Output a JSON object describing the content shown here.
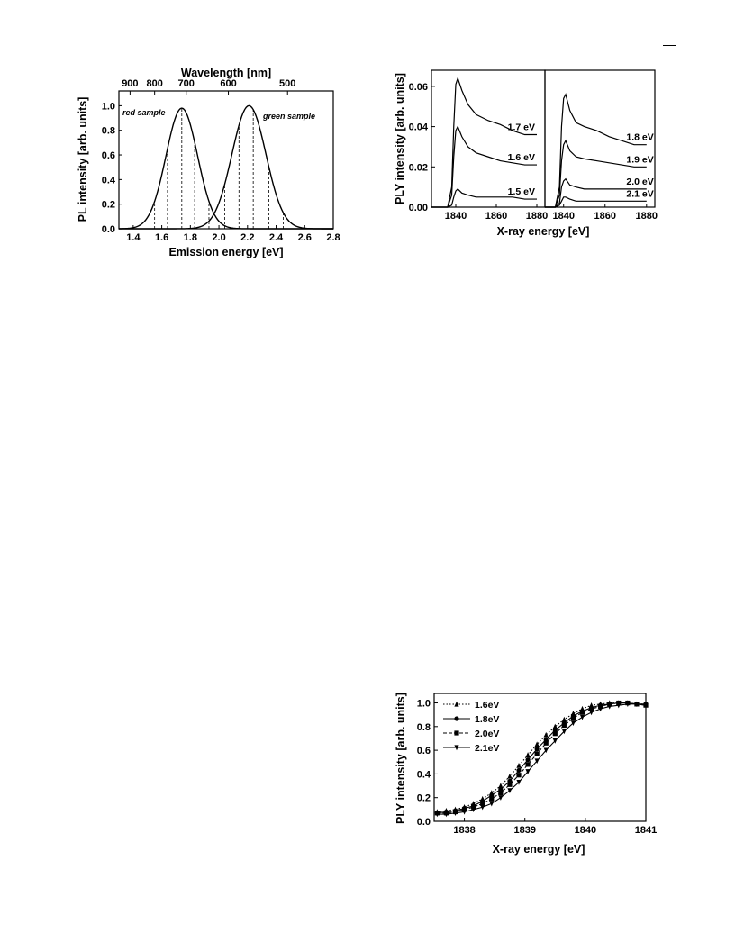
{
  "chart_data": [
    {
      "type": "line",
      "xlabel": "Emission energy [eV]",
      "ylabel": "PL intensity [arb. units]",
      "top_axis_label": "Wavelength [nm]",
      "top_ticks": [
        {
          "label": "900",
          "ev": 1.378
        },
        {
          "label": "800",
          "ev": 1.55
        },
        {
          "label": "700",
          "ev": 1.771
        },
        {
          "label": "600",
          "ev": 2.066
        },
        {
          "label": "500",
          "ev": 2.48
        }
      ],
      "xlim": [
        1.3,
        2.8
      ],
      "ylim": [
        0.0,
        1.12
      ],
      "x_ticks": [
        "1.4",
        "1.6",
        "1.8",
        "2.0",
        "2.2",
        "2.4",
        "2.6",
        "2.8"
      ],
      "x_tick_values": [
        1.4,
        1.6,
        1.8,
        2.0,
        2.2,
        2.4,
        2.6,
        2.8
      ],
      "y_ticks": [
        "0.0",
        "0.2",
        "0.4",
        "0.6",
        "0.8",
        "1.0"
      ],
      "y_tick_values": [
        0.0,
        0.2,
        0.4,
        0.6,
        0.8,
        1.0
      ],
      "series": [
        {
          "name": "red sample",
          "peak_ev": 1.74,
          "fwhm_ev": 0.26,
          "amplitude": 0.98
        },
        {
          "name": "green sample",
          "peak_ev": 2.21,
          "fwhm_ev": 0.28,
          "amplitude": 1.0
        }
      ],
      "dashed_markers_ev": [
        1.55,
        1.64,
        1.74,
        1.83,
        1.93,
        2.04,
        2.14,
        2.24,
        2.35,
        2.45
      ],
      "grid": false
    },
    {
      "type": "line",
      "xlabel": "X-ray energy  [eV]",
      "ylabel": "PLY intensity [arb. units]",
      "panels": [
        {
          "xlim": [
            1828,
            1884
          ],
          "ylim": [
            0.0,
            0.068
          ],
          "x_ticks": [
            "1840",
            "1860",
            "1880"
          ],
          "x_tick_values": [
            1840,
            1860,
            1880
          ],
          "y_ticks": [
            "0.00",
            "0.02",
            "0.04",
            "0.06"
          ],
          "y_tick_values": [
            0.0,
            0.02,
            0.04,
            0.06
          ],
          "series": [
            {
              "name": "1.7 eV",
              "x": [
                1828,
                1836,
                1838,
                1839,
                1840,
                1841,
                1843,
                1846,
                1850,
                1856,
                1862,
                1868,
                1874,
                1880
              ],
              "y": [
                0.0,
                0.0,
                0.01,
                0.04,
                0.061,
                0.064,
                0.058,
                0.051,
                0.046,
                0.043,
                0.041,
                0.038,
                0.036,
                0.036
              ]
            },
            {
              "name": "1.6 eV",
              "x": [
                1828,
                1836,
                1838,
                1839,
                1840,
                1841,
                1843,
                1846,
                1850,
                1856,
                1862,
                1868,
                1874,
                1880
              ],
              "y": [
                0.0,
                0.0,
                0.006,
                0.025,
                0.038,
                0.04,
                0.035,
                0.03,
                0.027,
                0.025,
                0.023,
                0.022,
                0.021,
                0.021
              ]
            },
            {
              "name": "1.5 eV",
              "x": [
                1828,
                1836,
                1838,
                1839,
                1840,
                1841,
                1843,
                1846,
                1850,
                1856,
                1862,
                1868,
                1874,
                1880
              ],
              "y": [
                0.0,
                0.0,
                0.001,
                0.005,
                0.008,
                0.009,
                0.007,
                0.006,
                0.005,
                0.005,
                0.005,
                0.005,
                0.004,
                0.004
              ]
            }
          ]
        },
        {
          "xlim": [
            1831,
            1884
          ],
          "ylim": [
            0.0,
            0.068
          ],
          "x_ticks": [
            "1840",
            "1860",
            "1880"
          ],
          "x_tick_values": [
            1840,
            1860,
            1880
          ],
          "series": [
            {
              "name": "1.8 eV",
              "x": [
                1831,
                1836,
                1838,
                1839,
                1840,
                1841,
                1843,
                1846,
                1850,
                1856,
                1862,
                1868,
                1874,
                1880
              ],
              "y": [
                0.0,
                0.0,
                0.01,
                0.04,
                0.054,
                0.056,
                0.048,
                0.042,
                0.04,
                0.038,
                0.035,
                0.033,
                0.031,
                0.031
              ]
            },
            {
              "name": "1.9 eV",
              "x": [
                1831,
                1836,
                1838,
                1839,
                1840,
                1841,
                1843,
                1846,
                1850,
                1856,
                1862,
                1868,
                1874,
                1880
              ],
              "y": [
                0.0,
                0.0,
                0.006,
                0.023,
                0.031,
                0.033,
                0.028,
                0.025,
                0.024,
                0.023,
                0.022,
                0.021,
                0.02,
                0.02
              ]
            },
            {
              "name": "2.0 eV",
              "x": [
                1831,
                1836,
                1838,
                1839,
                1840,
                1841,
                1843,
                1846,
                1850,
                1856,
                1862,
                1868,
                1874,
                1880
              ],
              "y": [
                0.0,
                0.0,
                0.002,
                0.01,
                0.013,
                0.014,
                0.011,
                0.01,
                0.009,
                0.009,
                0.009,
                0.009,
                0.009,
                0.009
              ]
            },
            {
              "name": "2.1 eV",
              "x": [
                1831,
                1836,
                1838,
                1839,
                1840,
                1841,
                1843,
                1846,
                1850,
                1856,
                1862,
                1868,
                1874,
                1880
              ],
              "y": [
                0.0,
                0.0,
                0.001,
                0.003,
                0.005,
                0.005,
                0.004,
                0.003,
                0.003,
                0.003,
                0.003,
                0.003,
                0.003,
                0.003
              ]
            }
          ]
        }
      ]
    },
    {
      "type": "line",
      "xlabel": "X-ray energy [eV]",
      "ylabel": "PLY intensity [arb. units]",
      "xlim": [
        1837.5,
        1841.0
      ],
      "ylim": [
        0.0,
        1.08
      ],
      "x_ticks": [
        "1838",
        "1839",
        "1840",
        "1841"
      ],
      "x_tick_values": [
        1838,
        1839,
        1840,
        1841
      ],
      "y_ticks": [
        "0.0",
        "0.2",
        "0.4",
        "0.6",
        "0.8",
        "1.0"
      ],
      "y_tick_values": [
        0.0,
        0.2,
        0.4,
        0.6,
        0.8,
        1.0
      ],
      "legend": "top-left",
      "series": [
        {
          "name": "1.6eV",
          "style": "dotted",
          "marker": "triangle-up",
          "x": [
            1837.55,
            1837.7,
            1837.85,
            1838.0,
            1838.15,
            1838.3,
            1838.45,
            1838.6,
            1838.75,
            1838.9,
            1839.05,
            1839.2,
            1839.35,
            1839.5,
            1839.65,
            1839.8,
            1839.95,
            1840.1,
            1840.25,
            1840.4,
            1840.55,
            1840.7,
            1840.85,
            1841.0
          ],
          "y": [
            0.08,
            0.09,
            0.1,
            0.12,
            0.15,
            0.19,
            0.24,
            0.3,
            0.38,
            0.47,
            0.56,
            0.65,
            0.73,
            0.8,
            0.86,
            0.91,
            0.95,
            0.98,
            0.99,
            1.0,
            1.0,
            1.0,
            0.99,
            0.99
          ]
        },
        {
          "name": "1.8eV",
          "style": "solid",
          "marker": "circle",
          "x": [
            1837.55,
            1837.7,
            1837.85,
            1838.0,
            1838.15,
            1838.3,
            1838.45,
            1838.6,
            1838.75,
            1838.9,
            1839.05,
            1839.2,
            1839.35,
            1839.5,
            1839.65,
            1839.8,
            1839.95,
            1840.1,
            1840.25,
            1840.4,
            1840.55,
            1840.7,
            1840.85,
            1841.0
          ],
          "y": [
            0.07,
            0.08,
            0.09,
            0.11,
            0.13,
            0.17,
            0.22,
            0.27,
            0.34,
            0.43,
            0.52,
            0.61,
            0.69,
            0.77,
            0.83,
            0.89,
            0.93,
            0.96,
            0.98,
            0.99,
            1.0,
            1.0,
            0.99,
            0.99
          ]
        },
        {
          "name": "2.0eV",
          "style": "dashed",
          "marker": "square",
          "x": [
            1837.55,
            1837.7,
            1837.85,
            1838.0,
            1838.15,
            1838.3,
            1838.45,
            1838.6,
            1838.75,
            1838.9,
            1839.05,
            1839.2,
            1839.35,
            1839.5,
            1839.65,
            1839.8,
            1839.95,
            1840.1,
            1840.25,
            1840.4,
            1840.55,
            1840.7,
            1840.85,
            1841.0
          ],
          "y": [
            0.07,
            0.07,
            0.08,
            0.1,
            0.12,
            0.15,
            0.19,
            0.24,
            0.31,
            0.39,
            0.48,
            0.57,
            0.66,
            0.74,
            0.81,
            0.87,
            0.92,
            0.95,
            0.97,
            0.99,
            1.0,
            1.0,
            0.99,
            0.98
          ]
        },
        {
          "name": "2.1eV",
          "style": "solid",
          "marker": "triangle-down",
          "x": [
            1837.55,
            1837.7,
            1837.85,
            1838.0,
            1838.15,
            1838.3,
            1838.45,
            1838.6,
            1838.75,
            1838.9,
            1839.05,
            1839.2,
            1839.35,
            1839.5,
            1839.65,
            1839.8,
            1839.95,
            1840.1,
            1840.25,
            1840.4,
            1840.55,
            1840.7,
            1840.85,
            1841.0
          ],
          "y": [
            0.06,
            0.06,
            0.07,
            0.08,
            0.1,
            0.12,
            0.15,
            0.2,
            0.26,
            0.33,
            0.42,
            0.51,
            0.6,
            0.68,
            0.76,
            0.83,
            0.88,
            0.92,
            0.95,
            0.97,
            0.98,
            0.99,
            0.99,
            0.98
          ]
        }
      ]
    }
  ]
}
